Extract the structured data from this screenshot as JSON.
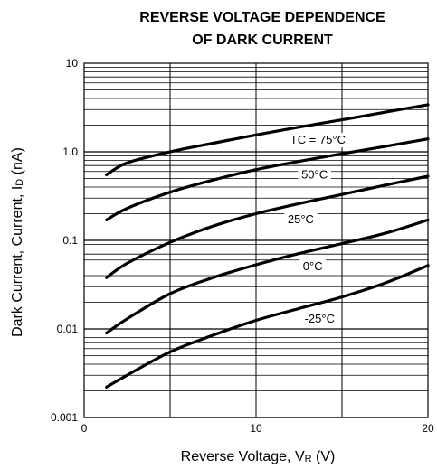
{
  "chart_data": {
    "type": "line",
    "title_lines": [
      "REVERSE VOLTAGE DEPENDENCE",
      "OF DARK CURRENT"
    ],
    "xlabel": "Reverse Voltage, V",
    "xlabel_sub": "R",
    "xlabel_unit": " (V)",
    "ylabel": "Dark Current, Current, I",
    "ylabel_sub": "D",
    "ylabel_unit": " (nA)",
    "xlim": [
      0,
      20
    ],
    "ylim": [
      0.001,
      10
    ],
    "yscale": "log",
    "grid": true,
    "x_ticks": [
      0,
      10,
      20
    ],
    "x_tick_labels": [
      "0",
      "10",
      "20"
    ],
    "y_ticks": [
      10,
      1,
      0.1,
      0.01,
      0.001
    ],
    "y_tick_labels": [
      "10",
      "1.0",
      "0.1",
      "0.01",
      "0.001"
    ],
    "series": [
      {
        "name": "TC = 75°C",
        "x": [
          1.3,
          2.5,
          5,
          7.5,
          10,
          12.5,
          15,
          17.5,
          20
        ],
        "values": [
          0.55,
          0.75,
          1.0,
          1.25,
          1.55,
          1.9,
          2.3,
          2.8,
          3.4
        ]
      },
      {
        "name": "50°C",
        "x": [
          1.3,
          2.5,
          5,
          7.5,
          10,
          12.5,
          15,
          17.5,
          20
        ],
        "values": [
          0.17,
          0.23,
          0.35,
          0.48,
          0.63,
          0.78,
          0.95,
          1.15,
          1.4
        ]
      },
      {
        "name": "25°C",
        "x": [
          1.3,
          2.5,
          5,
          7.5,
          10,
          12.5,
          15,
          17.5,
          20
        ],
        "values": [
          0.038,
          0.055,
          0.095,
          0.145,
          0.2,
          0.26,
          0.33,
          0.42,
          0.53
        ]
      },
      {
        "name": "0°C",
        "x": [
          1.3,
          2.5,
          5,
          7.5,
          10,
          12.5,
          15,
          17.5,
          20
        ],
        "values": [
          0.009,
          0.013,
          0.025,
          0.038,
          0.053,
          0.071,
          0.092,
          0.12,
          0.17
        ]
      },
      {
        "name": "-25°C",
        "x": [
          1.3,
          2.5,
          5,
          7.5,
          10,
          12.5,
          15,
          17.5,
          20
        ],
        "values": [
          0.0022,
          0.003,
          0.0055,
          0.0085,
          0.0125,
          0.017,
          0.023,
          0.033,
          0.052
        ]
      }
    ]
  }
}
